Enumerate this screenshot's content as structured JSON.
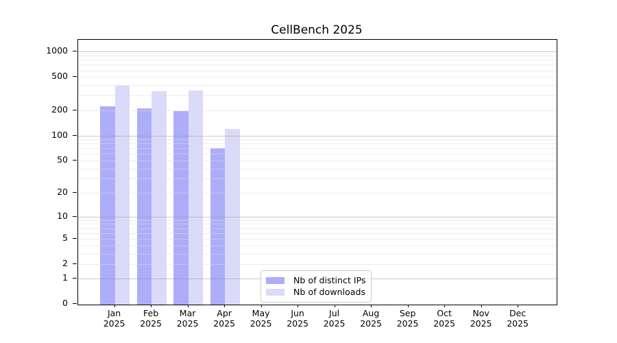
{
  "chart_data": {
    "type": "bar",
    "title": "CellBench 2025",
    "categories": [
      "Jan",
      "Feb",
      "Mar",
      "Apr",
      "May",
      "Jun",
      "Jul",
      "Aug",
      "Sep",
      "Oct",
      "Nov",
      "Dec"
    ],
    "year": "2025",
    "series": [
      {
        "name": "Nb of distinct IPs",
        "color": "#adadfa",
        "values": [
          225,
          210,
          195,
          70,
          0,
          0,
          0,
          0,
          0,
          0,
          0,
          0
        ]
      },
      {
        "name": "Nb of downloads",
        "color": "#dadafa",
        "values": [
          390,
          340,
          345,
          120,
          0,
          0,
          0,
          0,
          0,
          0,
          0,
          0
        ]
      }
    ],
    "yscale": "log10(value+1)",
    "ylim": [
      0,
      1000
    ],
    "yticks": [
      0,
      1,
      2,
      5,
      10,
      20,
      50,
      100,
      200,
      500,
      1000
    ],
    "grid_major": [
      1,
      10,
      100,
      1000
    ],
    "grid_minor": [
      2,
      3,
      4,
      5,
      6,
      7,
      8,
      9,
      20,
      30,
      40,
      50,
      60,
      70,
      80,
      90,
      200,
      300,
      400,
      500,
      600,
      700,
      800,
      900
    ],
    "grid": "on",
    "legend_position": "lower-center-left",
    "colors": {
      "grid_minor": "#ececec",
      "grid_major": "#c9c9c9",
      "axis": "#000000",
      "background": "#ffffff"
    }
  }
}
